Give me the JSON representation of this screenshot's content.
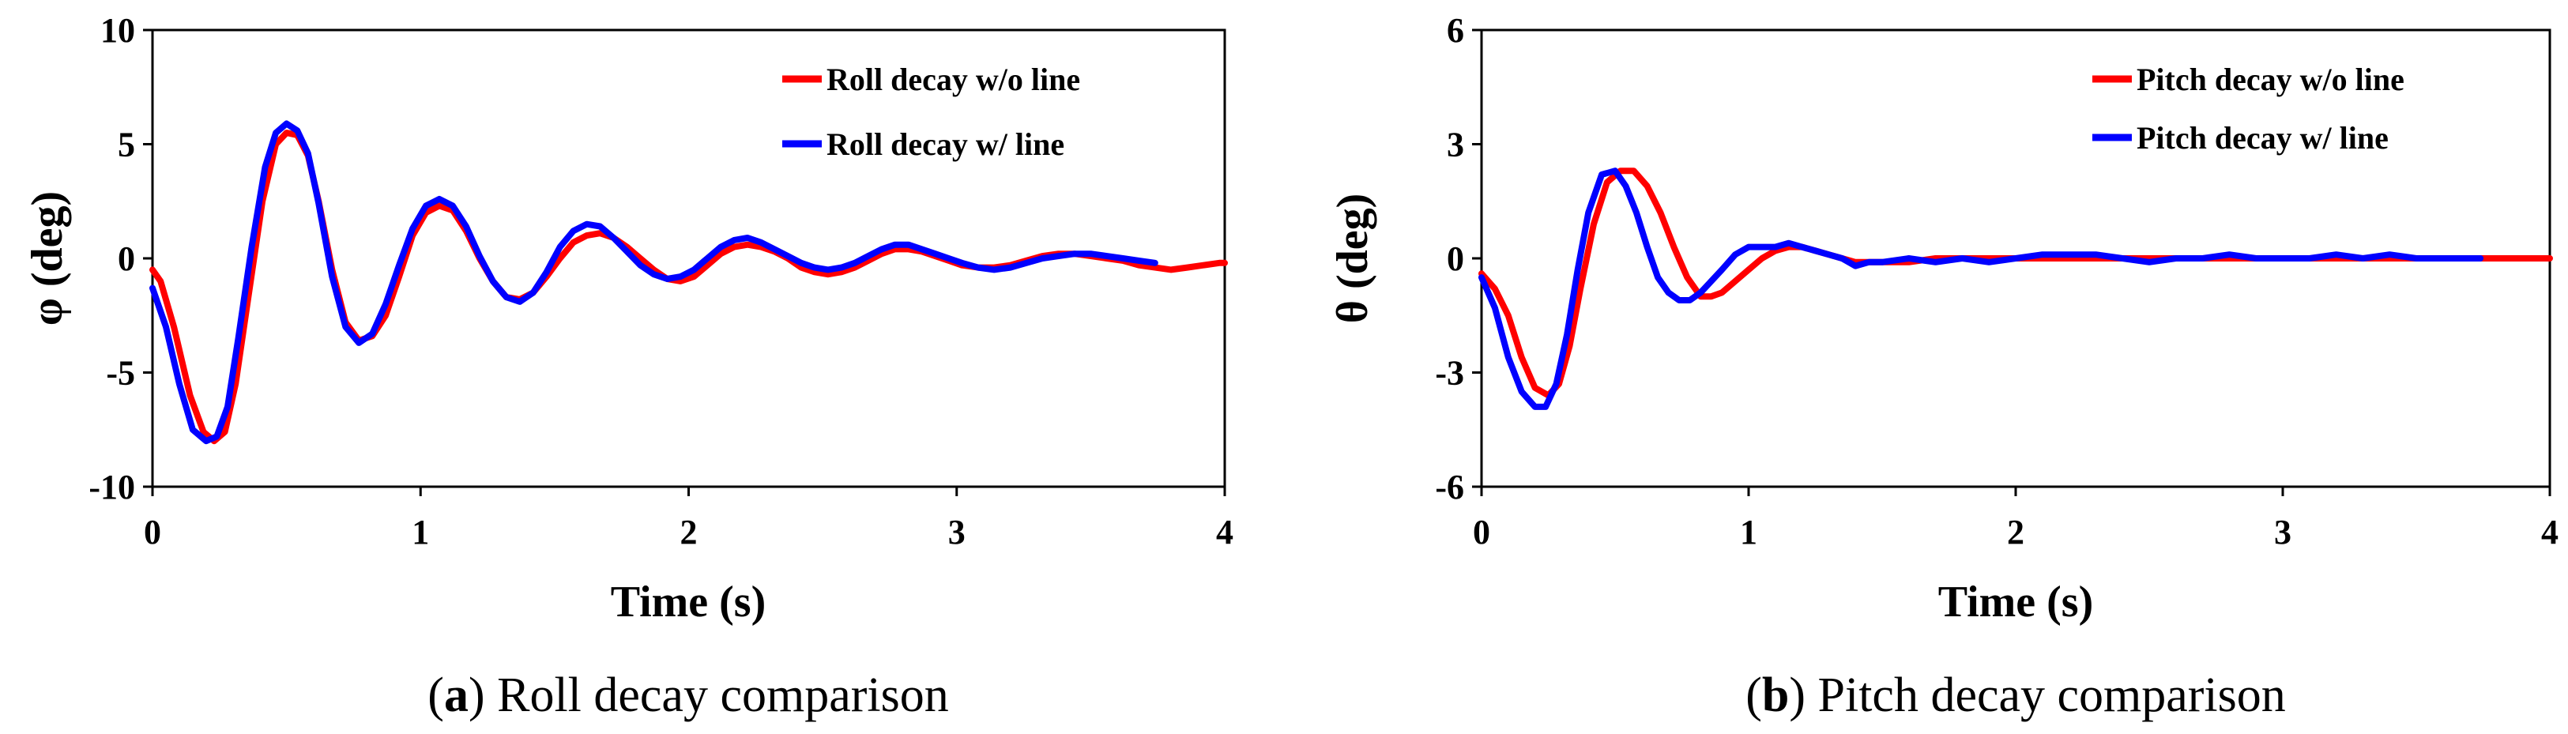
{
  "chart_data": [
    {
      "type": "line",
      "panel_label": "a",
      "caption_text": " Roll decay comparison",
      "xlabel": "Time (s)",
      "ylabel": "φ (deg)",
      "xlim": [
        0,
        4
      ],
      "ylim": [
        -10,
        10
      ],
      "xticks": [
        0,
        1,
        2,
        3,
        4
      ],
      "yticks": [
        -10,
        -5,
        0,
        5,
        10
      ],
      "legend_position": "top-right",
      "series": [
        {
          "name": "Roll decay w/o line",
          "color": "#ff0000",
          "x": [
            0,
            0.03,
            0.08,
            0.14,
            0.19,
            0.23,
            0.27,
            0.31,
            0.36,
            0.41,
            0.46,
            0.5,
            0.54,
            0.58,
            0.62,
            0.67,
            0.72,
            0.77,
            0.82,
            0.87,
            0.92,
            0.97,
            1.02,
            1.07,
            1.12,
            1.17,
            1.22,
            1.27,
            1.32,
            1.37,
            1.42,
            1.47,
            1.52,
            1.57,
            1.62,
            1.67,
            1.72,
            1.77,
            1.82,
            1.87,
            1.92,
            1.97,
            2.02,
            2.07,
            2.12,
            2.17,
            2.22,
            2.27,
            2.32,
            2.37,
            2.42,
            2.47,
            2.52,
            2.57,
            2.62,
            2.67,
            2.72,
            2.77,
            2.82,
            2.87,
            2.92,
            2.97,
            3.02,
            3.08,
            3.14,
            3.2,
            3.26,
            3.32,
            3.38,
            3.44,
            3.5,
            3.56,
            3.62,
            3.68,
            3.74,
            3.8,
            3.86,
            3.92,
            3.98,
            4.0
          ],
          "y": [
            -0.5,
            -1.0,
            -3.0,
            -6.0,
            -7.6,
            -8.0,
            -7.6,
            -5.5,
            -1.5,
            2.5,
            5.0,
            5.5,
            5.4,
            4.5,
            2.5,
            -0.5,
            -2.8,
            -3.6,
            -3.4,
            -2.5,
            -0.8,
            1.0,
            2.0,
            2.3,
            2.1,
            1.2,
            0.0,
            -1.0,
            -1.7,
            -1.8,
            -1.5,
            -0.8,
            0.0,
            0.7,
            1.0,
            1.1,
            0.9,
            0.5,
            0.0,
            -0.5,
            -0.9,
            -1.0,
            -0.8,
            -0.3,
            0.2,
            0.5,
            0.6,
            0.5,
            0.3,
            0.0,
            -0.4,
            -0.6,
            -0.7,
            -0.6,
            -0.4,
            -0.1,
            0.2,
            0.4,
            0.4,
            0.3,
            0.1,
            -0.1,
            -0.3,
            -0.4,
            -0.4,
            -0.3,
            -0.1,
            0.1,
            0.2,
            0.2,
            0.1,
            0.0,
            -0.1,
            -0.3,
            -0.4,
            -0.5,
            -0.4,
            -0.3,
            -0.2,
            -0.2
          ]
        },
        {
          "name": "Roll decay w/ line",
          "color": "#0000ff",
          "x": [
            0,
            0.05,
            0.1,
            0.15,
            0.2,
            0.24,
            0.28,
            0.32,
            0.37,
            0.42,
            0.46,
            0.5,
            0.54,
            0.58,
            0.62,
            0.67,
            0.72,
            0.77,
            0.82,
            0.87,
            0.92,
            0.97,
            1.02,
            1.07,
            1.12,
            1.17,
            1.22,
            1.27,
            1.32,
            1.37,
            1.42,
            1.47,
            1.52,
            1.57,
            1.62,
            1.67,
            1.72,
            1.77,
            1.82,
            1.87,
            1.92,
            1.97,
            2.02,
            2.07,
            2.12,
            2.17,
            2.22,
            2.27,
            2.32,
            2.37,
            2.42,
            2.47,
            2.52,
            2.57,
            2.62,
            2.67,
            2.72,
            2.77,
            2.82,
            2.87,
            2.92,
            2.97,
            3.02,
            3.08,
            3.14,
            3.2,
            3.26,
            3.32,
            3.38,
            3.44,
            3.5,
            3.56,
            3.62,
            3.68,
            3.74
          ],
          "y": [
            -1.3,
            -3.0,
            -5.5,
            -7.5,
            -8.0,
            -7.8,
            -6.5,
            -3.5,
            0.5,
            4.0,
            5.5,
            5.9,
            5.6,
            4.6,
            2.4,
            -0.8,
            -3.0,
            -3.7,
            -3.3,
            -2.0,
            -0.3,
            1.3,
            2.3,
            2.6,
            2.3,
            1.4,
            0.1,
            -1.0,
            -1.7,
            -1.9,
            -1.5,
            -0.6,
            0.5,
            1.2,
            1.5,
            1.4,
            0.9,
            0.3,
            -0.3,
            -0.7,
            -0.9,
            -0.8,
            -0.5,
            0.0,
            0.5,
            0.8,
            0.9,
            0.7,
            0.4,
            0.1,
            -0.2,
            -0.4,
            -0.5,
            -0.4,
            -0.2,
            0.1,
            0.4,
            0.6,
            0.6,
            0.4,
            0.2,
            0.0,
            -0.2,
            -0.4,
            -0.5,
            -0.4,
            -0.2,
            0.0,
            0.1,
            0.2,
            0.2,
            0.1,
            0.0,
            -0.1,
            -0.2
          ]
        }
      ]
    },
    {
      "type": "line",
      "panel_label": "b",
      "caption_text": " Pitch decay comparison",
      "xlabel": "Time (s)",
      "ylabel": "θ (deg)",
      "xlim": [
        0,
        4
      ],
      "ylim": [
        -6,
        6
      ],
      "xticks": [
        0,
        1,
        2,
        3,
        4
      ],
      "yticks": [
        -6,
        -3,
        0,
        3,
        6
      ],
      "legend_position": "top-right",
      "series": [
        {
          "name": "Pitch decay w/o line",
          "color": "#ff0000",
          "x": [
            0,
            0.05,
            0.1,
            0.15,
            0.2,
            0.25,
            0.29,
            0.33,
            0.37,
            0.42,
            0.47,
            0.52,
            0.57,
            0.62,
            0.67,
            0.72,
            0.77,
            0.82,
            0.86,
            0.9,
            0.95,
            1.0,
            1.05,
            1.1,
            1.15,
            1.2,
            1.25,
            1.3,
            1.35,
            1.4,
            1.5,
            1.6,
            1.7,
            1.8,
            1.9,
            2.0,
            2.2,
            2.4,
            2.6,
            2.8,
            3.0,
            3.2,
            3.4,
            3.6,
            3.8,
            4.0
          ],
          "y": [
            -0.4,
            -0.8,
            -1.5,
            -2.6,
            -3.4,
            -3.6,
            -3.3,
            -2.3,
            -0.8,
            0.9,
            2.0,
            2.3,
            2.3,
            1.9,
            1.2,
            0.3,
            -0.5,
            -1.0,
            -1.0,
            -0.9,
            -0.6,
            -0.3,
            0.0,
            0.2,
            0.3,
            0.3,
            0.2,
            0.1,
            0.0,
            -0.1,
            -0.1,
            -0.1,
            0.0,
            0.0,
            0.0,
            0.0,
            0.0,
            0.0,
            0.0,
            0.0,
            0.0,
            0.0,
            0.0,
            0.0,
            0.0,
            0.0
          ]
        },
        {
          "name": "Pitch decay w/ line",
          "color": "#0000ff",
          "x": [
            0,
            0.05,
            0.1,
            0.15,
            0.2,
            0.24,
            0.28,
            0.32,
            0.36,
            0.4,
            0.45,
            0.5,
            0.54,
            0.58,
            0.62,
            0.66,
            0.7,
            0.74,
            0.78,
            0.82,
            0.86,
            0.9,
            0.95,
            1.0,
            1.05,
            1.1,
            1.15,
            1.2,
            1.25,
            1.3,
            1.35,
            1.4,
            1.45,
            1.5,
            1.6,
            1.7,
            1.8,
            1.9,
            2.0,
            2.1,
            2.2,
            2.3,
            2.4,
            2.5,
            2.6,
            2.7,
            2.8,
            2.9,
            3.0,
            3.1,
            3.2,
            3.3,
            3.4,
            3.5,
            3.6,
            3.7,
            3.74
          ],
          "y": [
            -0.5,
            -1.3,
            -2.6,
            -3.5,
            -3.9,
            -3.9,
            -3.3,
            -2.0,
            -0.3,
            1.2,
            2.2,
            2.3,
            1.9,
            1.2,
            0.3,
            -0.5,
            -0.9,
            -1.1,
            -1.1,
            -0.9,
            -0.6,
            -0.3,
            0.1,
            0.3,
            0.3,
            0.3,
            0.4,
            0.3,
            0.2,
            0.1,
            0.0,
            -0.2,
            -0.1,
            -0.1,
            0.0,
            -0.1,
            0.0,
            -0.1,
            0.0,
            0.1,
            0.1,
            0.1,
            0.0,
            -0.1,
            0.0,
            0.0,
            0.1,
            0.0,
            0.0,
            0.0,
            0.1,
            0.0,
            0.1,
            0.0,
            0.0,
            0.0,
            0.0
          ]
        }
      ]
    }
  ]
}
